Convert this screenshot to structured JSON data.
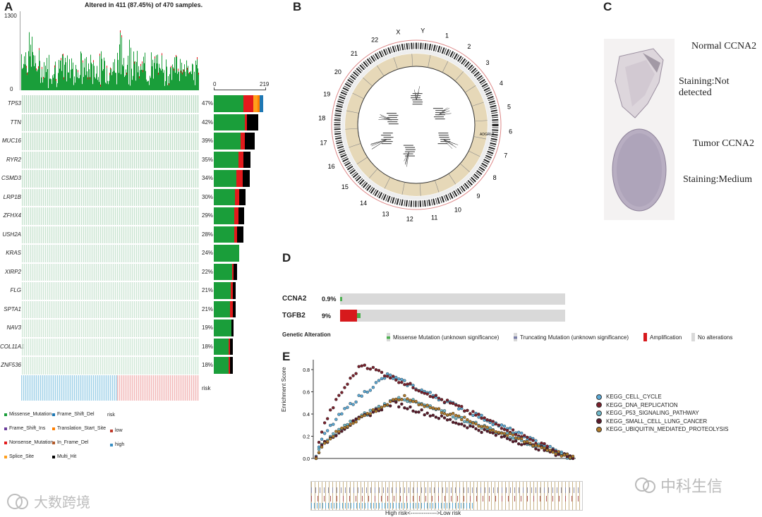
{
  "panels": {
    "a": "A",
    "b": "B",
    "c": "C",
    "d": "D",
    "e": "E"
  },
  "panel_a": {
    "title": "Altered in 411 (87.45%) of 470 samples.",
    "top_axis": {
      "max": "1300",
      "min": "0"
    },
    "side_axis": {
      "min": "0",
      "max": "219"
    },
    "genes": [
      {
        "name": "TP53",
        "pct": "47%",
        "bar": [
          0.6,
          0.2,
          0.08,
          0.05,
          0.07
        ]
      },
      {
        "name": "TTN",
        "pct": "42%",
        "bar": [
          0.7,
          0.05,
          0.25
        ]
      },
      {
        "name": "MUC16",
        "pct": "39%",
        "bar": [
          0.65,
          0.1,
          0.25
        ]
      },
      {
        "name": "RYR2",
        "pct": "35%",
        "bar": [
          0.68,
          0.12,
          0.2
        ]
      },
      {
        "name": "CSMD3",
        "pct": "34%",
        "bar": [
          0.64,
          0.16,
          0.2
        ]
      },
      {
        "name": "LRP1B",
        "pct": "30%",
        "bar": [
          0.68,
          0.12,
          0.2
        ]
      },
      {
        "name": "ZFHX4",
        "pct": "29%",
        "bar": [
          0.66,
          0.14,
          0.2
        ]
      },
      {
        "name": "USH2A",
        "pct": "28%",
        "bar": [
          0.7,
          0.1,
          0.2
        ]
      },
      {
        "name": "KRAS",
        "pct": "24%",
        "bar": [
          1.0
        ]
      },
      {
        "name": "XIRP2",
        "pct": "22%",
        "bar": [
          0.78,
          0.07,
          0.15
        ]
      },
      {
        "name": "FLG",
        "pct": "21%",
        "bar": [
          0.78,
          0.07,
          0.15
        ]
      },
      {
        "name": "SPTA1",
        "pct": "21%",
        "bar": [
          0.72,
          0.13,
          0.15
        ]
      },
      {
        "name": "NAV3",
        "pct": "19%",
        "bar": [
          0.88,
          0.12
        ]
      },
      {
        "name": "COL11A1",
        "pct": "18%",
        "bar": [
          0.78,
          0.07,
          0.15
        ]
      },
      {
        "name": "ZNF536",
        "pct": "18%",
        "bar": [
          0.78,
          0.07,
          0.15
        ]
      }
    ],
    "risk_label": "risk",
    "legend_mut": [
      "Missense_Mutation",
      "Frame_Shift_Del",
      "Frame_Shift_Ins",
      "Translation_Start_Site",
      "Nonsense_Mutation",
      "In_Frame_Del",
      "Splice_Site",
      "Multi_Hit"
    ],
    "legend_risk_title": "risk",
    "legend_risk": [
      "low",
      "high"
    ],
    "colors": {
      "missense": "#1a9e3a",
      "frame_del": "#1f78b4",
      "frame_ins": "#6a3d9a",
      "tss": "#ff7f00",
      "nonsense": "#e31a1c",
      "in_frame_del": "#b15928",
      "splice": "#ff9f1c",
      "multi": "#000000",
      "low": "#f2b8b8",
      "high": "#9fd0e8"
    }
  },
  "panel_b": {
    "chromosomes": [
      "1",
      "2",
      "3",
      "4",
      "5",
      "6",
      "7",
      "8",
      "9",
      "10",
      "11",
      "12",
      "13",
      "14",
      "15",
      "16",
      "17",
      "18",
      "19",
      "20",
      "21",
      "22",
      "X",
      "Y"
    ],
    "gene_tag": "ADGRL3"
  },
  "panel_c": {
    "normal_title": "Normal CCNA2",
    "normal_staining": "Staining:Not detected",
    "tumor_title": "Tumor CCNA2",
    "tumor_staining": "Staining:Medium"
  },
  "panel_d": {
    "rows": [
      {
        "gene": "CCNA2",
        "pct": "0.9%"
      },
      {
        "gene": "TGFB2",
        "pct": "9%"
      }
    ],
    "legend_title": "Genetic Alteration",
    "legend": [
      "Missense Mutation (unknown significance)",
      "Truncating Mutation (unknown significance)",
      "Amplification",
      "No alterations"
    ],
    "colors": {
      "missense": "#4caf50",
      "truncating": "#7b7fa8",
      "amplification": "#d7191c",
      "none": "#d9d9d9"
    }
  },
  "panel_e": {
    "y_label": "Enrichment Score",
    "y_ticks": [
      "0.8",
      "0.6",
      "0.4",
      "0.2",
      "0.0"
    ],
    "x_label": "High risk<-------------->Low risk",
    "legend": [
      {
        "name": "KEGG_CELL_CYCLE",
        "color": "#5aa9d6"
      },
      {
        "name": "KEGG_DNA_REPLICATION",
        "color": "#7a1f2b"
      },
      {
        "name": "KEGG_P53_SIGNALING_PATHWAY",
        "color": "#6fb8c9"
      },
      {
        "name": "KEGG_SMALL_CELL_LUNG_CANCER",
        "color": "#5a1a2a"
      },
      {
        "name": "KEGG_UBIQUITIN_MEDIATED_PROTEOLYSIS",
        "color": "#b07a2a"
      }
    ]
  },
  "watermarks": {
    "left": "大数跨境",
    "right": "中科生信"
  }
}
